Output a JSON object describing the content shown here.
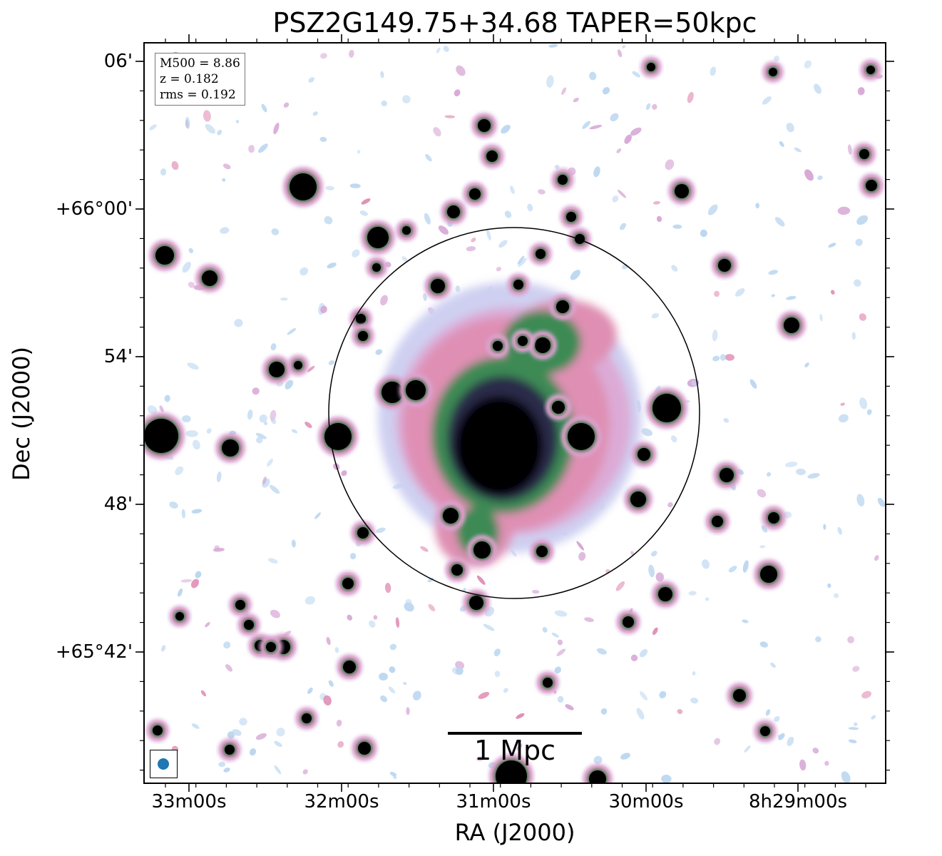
{
  "chart_data": {
    "type": "heatmap",
    "title": "PSZ2G149.75+34.68 TAPER=50kpc",
    "xlabel": "RA (J2000)",
    "ylabel": "Dec (J2000)",
    "x_tick_labels": [
      "33m00s",
      "32m00s",
      "31m00s",
      "30m00s",
      "8h29m00s"
    ],
    "y_tick_labels": [
      "06'",
      "+66°00'",
      "54'",
      "48'",
      "+65°42'"
    ],
    "annotations": {
      "mass": "M500 = 8.86",
      "redshift": "z = 0.182",
      "rms": "rms = 0.192",
      "scale_bar": "1 Mpc"
    },
    "colormap": "cubehelix (reversed)",
    "colors": {
      "faint": "#bcd7f0",
      "low": "#d7a9d6",
      "mid": "#e08fb5",
      "high": "#2e7a4a",
      "peak": "#000000",
      "beam": "#1f77b4"
    },
    "grid": false
  }
}
